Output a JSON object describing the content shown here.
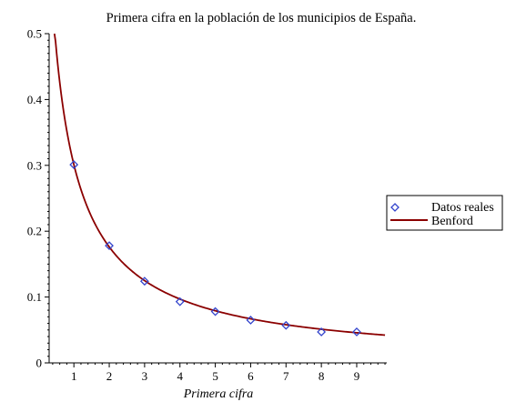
{
  "chart_data": {
    "type": "scatter",
    "title": "Primera cifra en la población de los municipios de España.",
    "xlabel": "Primera cifra",
    "ylabel": "",
    "xlim": [
      0.3,
      9.85
    ],
    "ylim": [
      0,
      0.5
    ],
    "x_ticks": [
      1,
      2,
      3,
      4,
      5,
      6,
      7,
      8,
      9
    ],
    "y_ticks": [
      0,
      0.1,
      0.2,
      0.3,
      0.4,
      0.5
    ],
    "y_tick_labels": [
      "0",
      "0.1",
      "0.2",
      "0.3",
      "0.4",
      "0.5"
    ],
    "grid": false,
    "legend_position": "right",
    "series": [
      {
        "name": "Datos reales",
        "kind": "points",
        "color": "#3344cc",
        "marker": "diamond",
        "x": [
          1,
          2,
          3,
          4,
          5,
          6,
          7,
          8,
          9
        ],
        "y": [
          0.301,
          0.178,
          0.124,
          0.093,
          0.078,
          0.065,
          0.057,
          0.047,
          0.047
        ]
      },
      {
        "name": "Benford",
        "kind": "curve",
        "color": "#8b0000",
        "formula": "log10(1 + 1/x)",
        "x_range": [
          0.45,
          9.8
        ]
      }
    ]
  }
}
